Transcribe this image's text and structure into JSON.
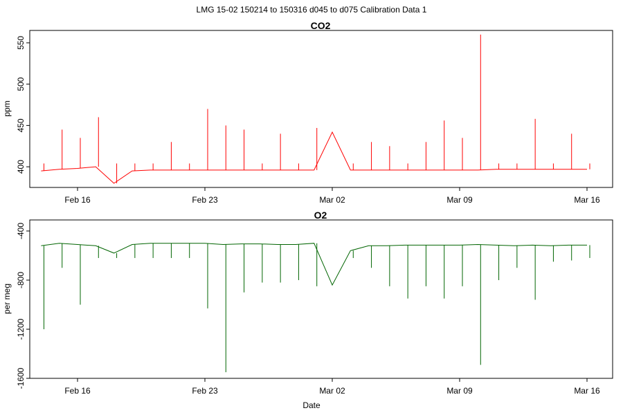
{
  "figure": {
    "suptitle": "LMG   15-02    150214 to 150316    d045 to d075   Calibration Data 1",
    "xlabel": "Date"
  },
  "chart_data": [
    {
      "type": "line",
      "title": "CO2",
      "ylabel": "ppm",
      "xlabel": "",
      "color": "#ff0000",
      "grid": false,
      "xlim": [
        "2015-02-14",
        "2015-03-16"
      ],
      "ylim": [
        375,
        565
      ],
      "yticks": [
        400,
        450,
        500,
        550
      ],
      "xticks": [
        "Feb 16",
        "Feb 23",
        "Mar 02",
        "Mar 09",
        "Mar 16"
      ],
      "series": [
        {
          "x": [
            "2015-02-14",
            "2015-02-15",
            "2015-02-16",
            "2015-02-17",
            "2015-02-18",
            "2015-02-19",
            "2015-02-20",
            "2015-02-21",
            "2015-02-22",
            "2015-02-23",
            "2015-02-24",
            "2015-02-25",
            "2015-02-26",
            "2015-02-27",
            "2015-02-28",
            "2015-03-01",
            "2015-03-02",
            "2015-03-03",
            "2015-03-04",
            "2015-03-05",
            "2015-03-06",
            "2015-03-07",
            "2015-03-08",
            "2015-03-09",
            "2015-03-10",
            "2015-03-11",
            "2015-03-12",
            "2015-03-13",
            "2015-03-14",
            "2015-03-15",
            "2015-03-16"
          ],
          "values": [
            395,
            397,
            398,
            400,
            380,
            395,
            396,
            396,
            396,
            396,
            396,
            396,
            396,
            396,
            396,
            396,
            442,
            396,
            396,
            396,
            396,
            396,
            396,
            396,
            396,
            397,
            397,
            397,
            397,
            397,
            397
          ],
          "spikes_max": [
            404,
            445,
            435,
            460,
            404,
            404,
            404,
            430,
            404,
            470,
            450,
            445,
            404,
            440,
            404,
            447,
            null,
            404,
            430,
            425,
            404,
            430,
            456,
            435,
            560,
            404,
            404,
            458,
            404,
            440,
            404
          ]
        }
      ]
    },
    {
      "type": "line",
      "title": "O2",
      "ylabel": "per meg",
      "xlabel": "Date",
      "color": "#006400",
      "grid": false,
      "xlim": [
        "2015-02-14",
        "2015-03-16"
      ],
      "ylim": [
        -1600,
        -310
      ],
      "yticks": [
        -400,
        -800,
        -1200,
        -1600
      ],
      "xticks": [
        "Feb 16",
        "Feb 23",
        "Mar 02",
        "Mar 09",
        "Mar 16"
      ],
      "series": [
        {
          "x": [
            "2015-02-14",
            "2015-02-15",
            "2015-02-16",
            "2015-02-17",
            "2015-02-18",
            "2015-02-19",
            "2015-02-20",
            "2015-02-21",
            "2015-02-22",
            "2015-02-23",
            "2015-02-24",
            "2015-02-25",
            "2015-02-26",
            "2015-02-27",
            "2015-02-28",
            "2015-03-01",
            "2015-03-02",
            "2015-03-03",
            "2015-03-04",
            "2015-03-05",
            "2015-03-06",
            "2015-03-07",
            "2015-03-08",
            "2015-03-09",
            "2015-03-10",
            "2015-03-11",
            "2015-03-12",
            "2015-03-13",
            "2015-03-14",
            "2015-03-15",
            "2015-03-16"
          ],
          "values": [
            -520,
            -500,
            -510,
            -520,
            -580,
            -510,
            -500,
            -500,
            -500,
            -500,
            -510,
            -505,
            -505,
            -510,
            -510,
            -500,
            -840,
            -560,
            -520,
            -520,
            -515,
            -515,
            -515,
            -515,
            -510,
            -515,
            -520,
            -515,
            -520,
            -515,
            -515
          ],
          "dips_min": [
            -1200,
            -700,
            -1000,
            -620,
            -620,
            -620,
            -620,
            -620,
            -620,
            -1030,
            -1550,
            -900,
            -820,
            -820,
            -800,
            -850,
            null,
            -620,
            -700,
            -850,
            -950,
            -850,
            -950,
            -850,
            -1490,
            -800,
            -700,
            -960,
            -650,
            -640,
            -620
          ]
        }
      ]
    }
  ]
}
